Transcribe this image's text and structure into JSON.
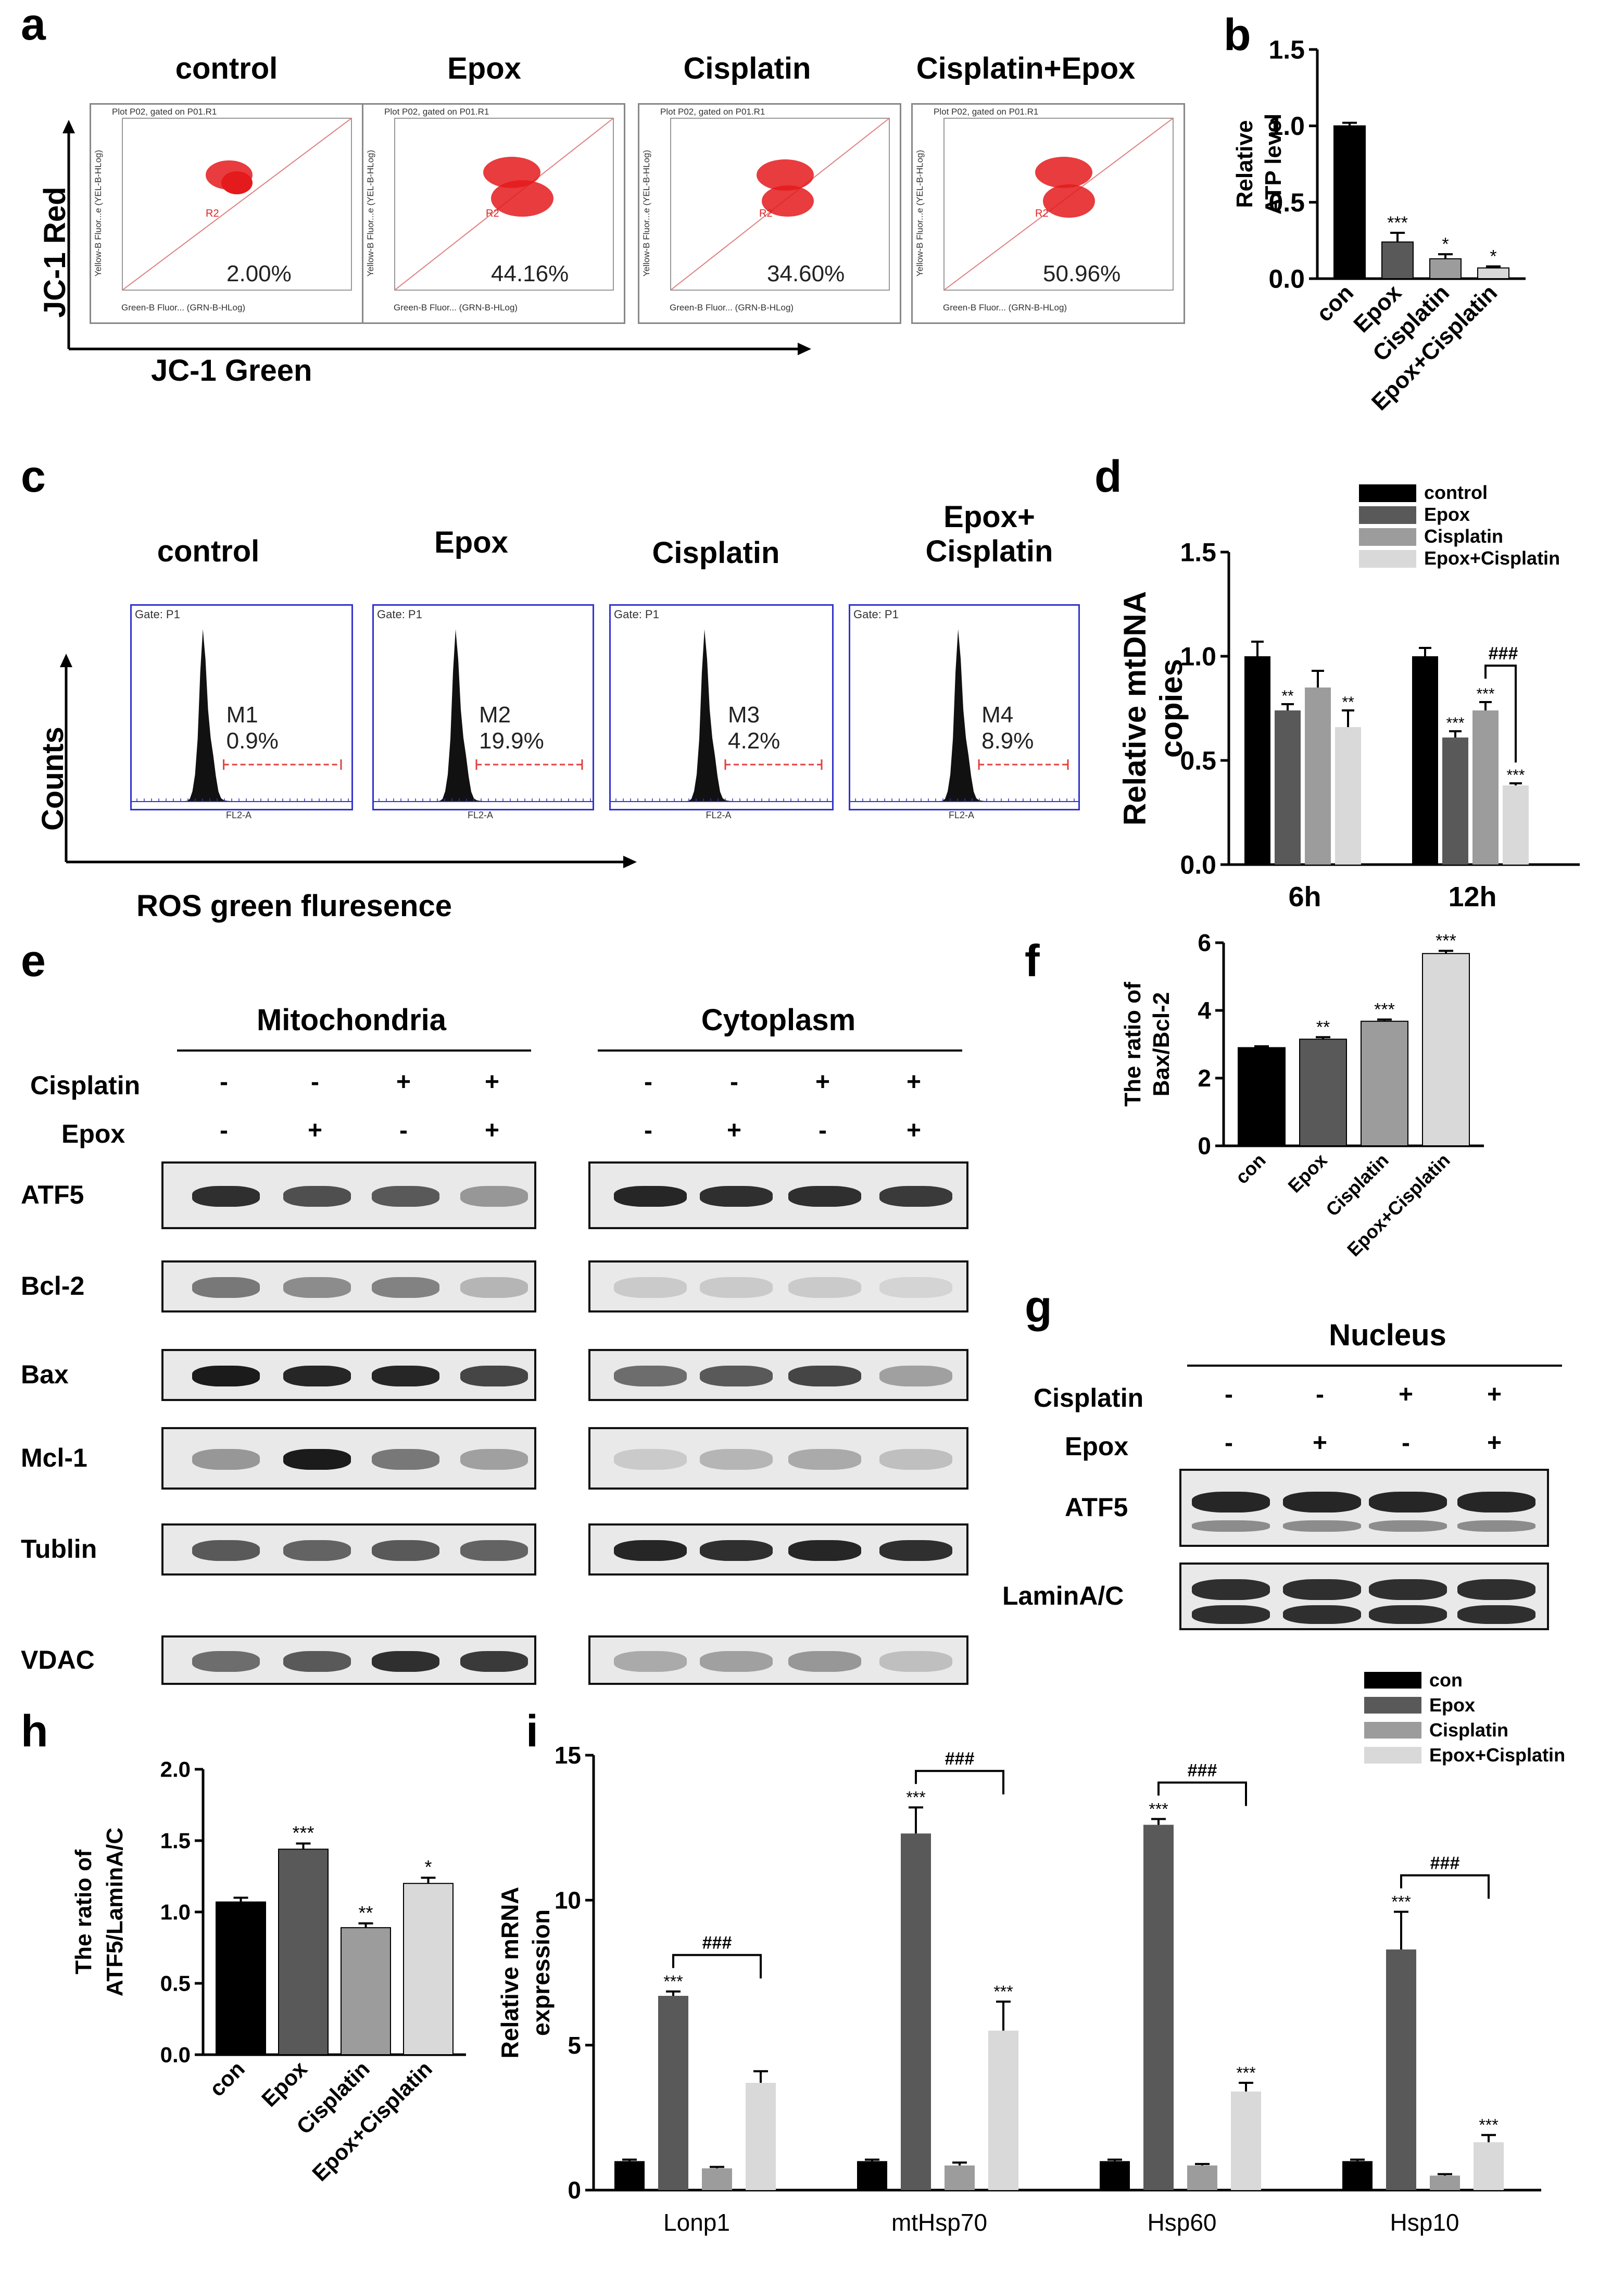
{
  "panel_letters": {
    "a": "a",
    "b": "b",
    "c": "c",
    "d": "d",
    "e": "e",
    "f": "f",
    "g": "g",
    "h": "h",
    "i": "i"
  },
  "panel_a": {
    "titles": [
      "control",
      "Epox",
      "Cisplatin",
      "Cisplatin+Epox"
    ],
    "plot_header": "Plot P02, gated on P01.R1",
    "y_axis_small": "Yellow-B Fluor...e (YEL-B-HLog)",
    "x_axis_small": "Green-B Fluor... (GRN-B-HLog)",
    "gate_label": "R2",
    "percentages": [
      "2.00%",
      "44.16%",
      "34.60%",
      "50.96%"
    ],
    "big_y_label": "JC-1 Red",
    "big_x_label": "JC-1 Green"
  },
  "panel_c": {
    "titles": [
      "control",
      "Epox",
      "Cisplatin",
      "Epox+ Cisplatin"
    ],
    "gate": "Gate: P1",
    "markers": [
      "M1",
      "M2",
      "M3",
      "M4"
    ],
    "percentages": [
      "0.9%",
      "19.9%",
      "4.2%",
      "8.9%"
    ],
    "x_axis_small": "FL2-A",
    "big_y_label": "Counts",
    "big_x_label": "ROS green fluresence"
  },
  "panel_e": {
    "section_left": "Mitochondria",
    "section_right": "Cytoplasm",
    "cisplatin_label": "Cisplatin",
    "epox_label": "Epox",
    "cisplatin_signs": [
      "-",
      "-",
      "+",
      "+"
    ],
    "epox_signs": [
      "-",
      "+",
      "-",
      "+"
    ],
    "rows": [
      "ATF5",
      "Bcl-2",
      "Bax",
      "Mcl-1",
      "Tublin",
      "VDAC"
    ]
  },
  "panel_g": {
    "section": "Nucleus",
    "cisplatin_label": "Cisplatin",
    "epox_label": "Epox",
    "cisplatin_signs": [
      "-",
      "-",
      "+",
      "+"
    ],
    "epox_signs": [
      "-",
      "+",
      "-",
      "+"
    ],
    "rows": [
      "ATF5",
      "LaminA/C"
    ]
  },
  "colors": {
    "con": "#000000",
    "epox": "#595959",
    "cisplatin": "#9c9c9c",
    "combo": "#d9d9d9"
  },
  "chart_data": [
    {
      "id": "b",
      "type": "bar",
      "categories": [
        "con",
        "Epox",
        "Cisplatin",
        "Epox+Cisplatin"
      ],
      "values": [
        1.0,
        0.24,
        0.13,
        0.07
      ],
      "errors": [
        0.02,
        0.06,
        0.03,
        0.01
      ],
      "significance": [
        "",
        "***",
        "*",
        "*"
      ],
      "ylabel": "Relative ATP level",
      "ylim": [
        0,
        1.5
      ],
      "yticks": [
        "0.0",
        "0.5",
        "1.0",
        "1.5"
      ]
    },
    {
      "id": "d",
      "type": "bar",
      "categories": [
        "6h",
        "12h"
      ],
      "series": [
        {
          "name": "control",
          "values": [
            1.0,
            1.0
          ],
          "errors": [
            0.07,
            0.04
          ],
          "significance": [
            "",
            ""
          ]
        },
        {
          "name": "Epox",
          "values": [
            0.74,
            0.61
          ],
          "errors": [
            0.03,
            0.03
          ],
          "significance": [
            "**",
            "***"
          ]
        },
        {
          "name": "Cisplatin",
          "values": [
            0.85,
            0.74
          ],
          "errors": [
            0.08,
            0.04
          ],
          "significance": [
            "",
            "***"
          ]
        },
        {
          "name": "Epox+Cisplatin",
          "values": [
            0.66,
            0.38
          ],
          "errors": [
            0.08,
            0.01
          ],
          "significance": [
            "**",
            "***"
          ]
        }
      ],
      "bracket": "###",
      "ylabel": "Relative mtDNA copies",
      "ylim": [
        0,
        1.5
      ],
      "yticks": [
        "0.0",
        "0.5",
        "1.0",
        "1.5"
      ]
    },
    {
      "id": "f",
      "type": "bar",
      "categories": [
        "con",
        "Epox",
        "Cisplatin",
        "Epox+Cisplatin"
      ],
      "values": [
        2.9,
        3.15,
        3.68,
        5.68
      ],
      "errors": [
        0.04,
        0.06,
        0.05,
        0.08
      ],
      "significance": [
        "",
        "**",
        "***",
        "***"
      ],
      "ylabel": "The ratio of Bax/Bcl-2",
      "ylim": [
        0,
        6
      ],
      "yticks": [
        "0",
        "2",
        "4",
        "6"
      ]
    },
    {
      "id": "h",
      "type": "bar",
      "categories": [
        "con",
        "Epox",
        "Cisplatin",
        "Epox+Cisplatin"
      ],
      "values": [
        1.07,
        1.44,
        0.89,
        1.2
      ],
      "errors": [
        0.03,
        0.04,
        0.03,
        0.04
      ],
      "significance": [
        "",
        "***",
        "**",
        "*"
      ],
      "ylabel": "The ratio of ATF5/LaminA/C",
      "ylim": [
        0,
        2
      ],
      "yticks": [
        "0.0",
        "0.5",
        "1.0",
        "1.5",
        "2.0"
      ]
    },
    {
      "id": "i",
      "type": "bar",
      "categories": [
        "Lonp1",
        "mtHsp70",
        "Hsp60",
        "Hsp10"
      ],
      "series": [
        {
          "name": "con",
          "values": [
            1,
            1,
            1,
            1
          ],
          "errors": [
            0.05,
            0.05,
            0.05,
            0.05
          ],
          "significance": [
            "",
            "",
            "",
            ""
          ]
        },
        {
          "name": "Epox",
          "values": [
            6.7,
            12.3,
            12.6,
            8.3
          ],
          "errors": [
            0.15,
            0.9,
            0.2,
            1.3
          ],
          "significance": [
            "***",
            "***",
            "***",
            "***"
          ]
        },
        {
          "name": "Cisplatin",
          "values": [
            0.75,
            0.85,
            0.85,
            0.5
          ],
          "errors": [
            0.05,
            0.1,
            0.05,
            0.05
          ],
          "significance": [
            "",
            "",
            "",
            ""
          ]
        },
        {
          "name": "Epox+Cisplatin",
          "values": [
            3.7,
            5.5,
            3.4,
            1.65
          ],
          "errors": [
            0.4,
            1.0,
            0.3,
            0.25
          ],
          "significance": [
            "",
            "***",
            "***",
            "***"
          ]
        }
      ],
      "bracket": "###",
      "ylabel": "Relative mRNA expression",
      "ylim": [
        0,
        15
      ],
      "yticks": [
        "0",
        "5",
        "10",
        "15"
      ]
    }
  ]
}
